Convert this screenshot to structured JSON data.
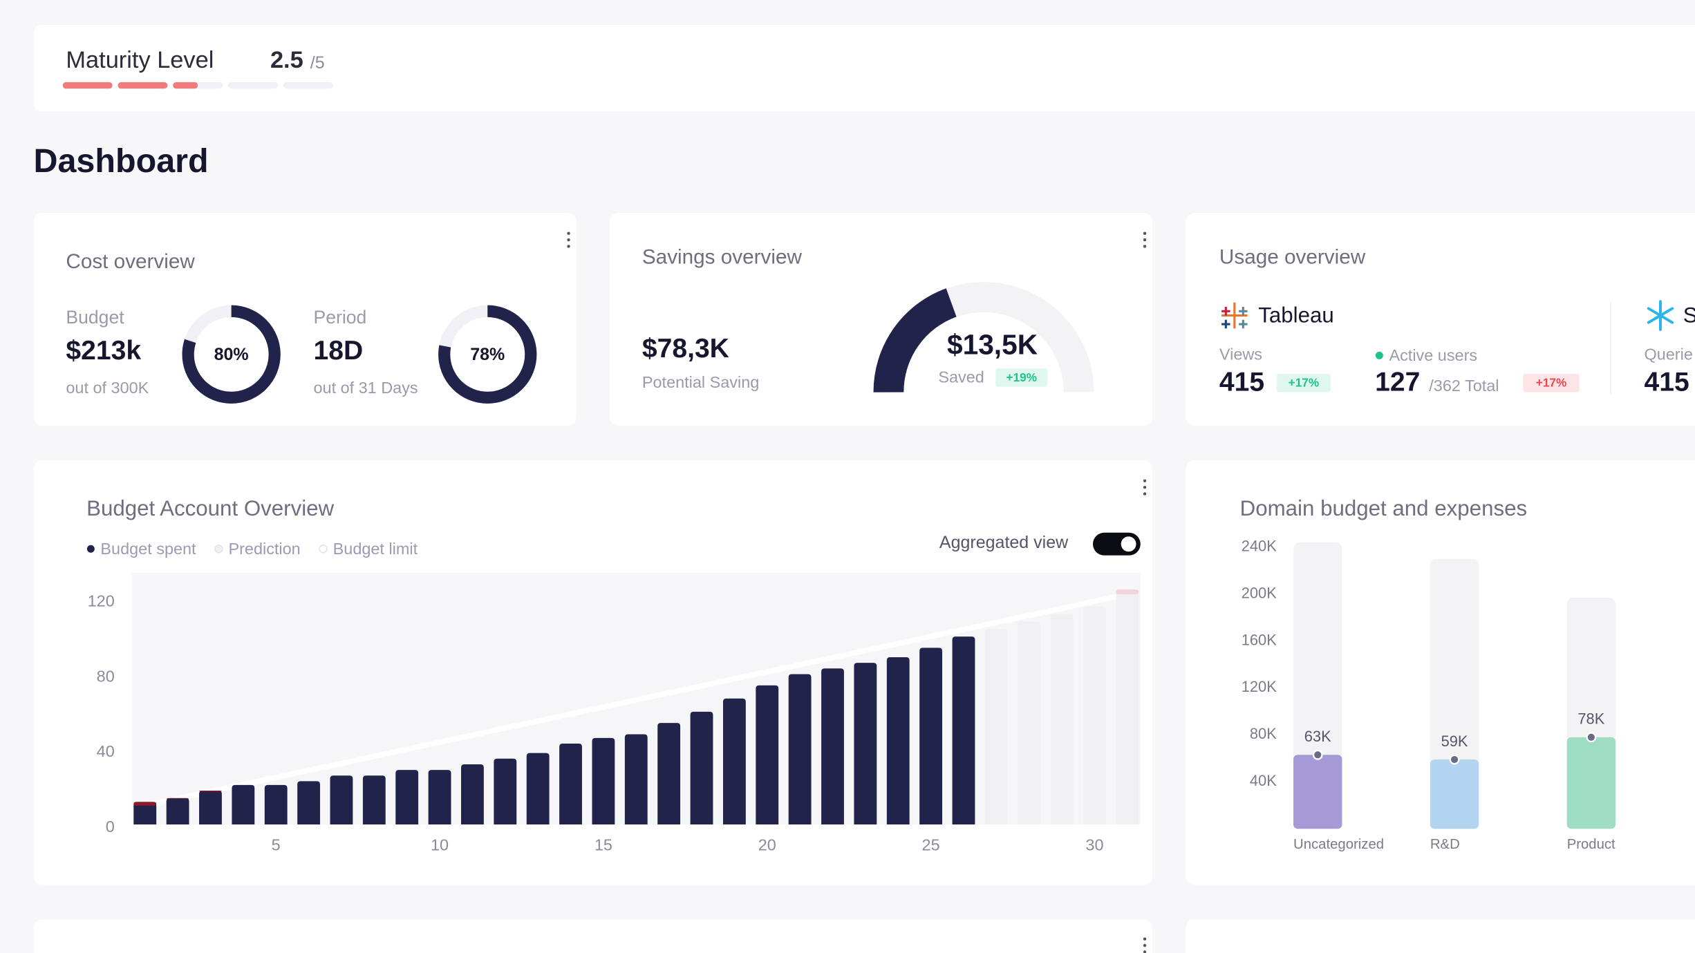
{
  "header": {
    "title": "Maturity Level",
    "score": 2.5,
    "max": {
      "value": 5,
      "label": "/5"
    }
  },
  "page_title": "Dashboard",
  "cost": {
    "title": "Cost overview",
    "items": [
      {
        "label": "Budget",
        "value": "$213k",
        "note": "out of 300K",
        "percent": {
          "value": 80,
          "label": "80%"
        }
      },
      {
        "label": "Period",
        "value": "18D",
        "note": "out of 31 Days",
        "percent": {
          "value": 78,
          "label": "78%"
        }
      }
    ]
  },
  "savings": {
    "title": "Savings overview",
    "potential": "$78,3K",
    "potential_label": "Potential Saving",
    "saved": "$13,5K",
    "saved_label": "Saved",
    "change": "+19%"
  },
  "usage": {
    "title": "Usage overview",
    "tools": [
      {
        "name": "Tableau",
        "views_label": "Views",
        "views": 415,
        "views_change": "+17%",
        "users_label": "Active users",
        "users": 127,
        "users_total": "/362 Total",
        "users_change": "+17%"
      },
      {
        "name": "S",
        "views_label": "Querie",
        "views": 415
      }
    ]
  },
  "chart_data": [
    {
      "type": "bar",
      "title": "Budget Account Overview",
      "toggle_label": "Aggregated view",
      "x": [
        1,
        2,
        3,
        4,
        5,
        6,
        7,
        8,
        9,
        10,
        11,
        12,
        13,
        14,
        15,
        16,
        17,
        18,
        19,
        20,
        21,
        22,
        23,
        24,
        25,
        26,
        27,
        28,
        29,
        30,
        31
      ],
      "xlim": [
        0.6,
        31.4
      ],
      "xticks": [
        5,
        10,
        15,
        20,
        25,
        30
      ],
      "ylim": [
        0,
        134
      ],
      "yticks": [
        0,
        40,
        80,
        120
      ],
      "series": [
        {
          "name": "Budget spent",
          "color": "#22234a",
          "over_color": "#8b1a2b",
          "values": [
            12,
            14,
            18,
            21,
            21,
            23,
            26,
            26,
            29,
            29,
            32,
            35,
            38,
            43,
            46,
            48,
            54,
            60,
            67,
            74,
            80,
            83,
            86,
            89,
            94,
            100,
            null,
            null,
            null,
            null,
            null
          ]
        },
        {
          "name": "Prediction",
          "color": "#f0f0f3",
          "over_color": "#f3d3d8",
          "values": [
            null,
            null,
            null,
            null,
            null,
            null,
            null,
            null,
            null,
            null,
            null,
            null,
            null,
            null,
            null,
            null,
            null,
            null,
            null,
            null,
            null,
            null,
            null,
            null,
            null,
            null,
            104,
            108,
            112,
            116,
            125
          ]
        },
        {
          "name": "Budget limit",
          "color": "#ffffff",
          "values": [
            10,
            13.75,
            17.5,
            21.25,
            25,
            28.75,
            32.5,
            36.25,
            40,
            43.75,
            47.5,
            51.25,
            55,
            58.75,
            62.5,
            66.25,
            70,
            73.75,
            77.5,
            81.25,
            85,
            88.75,
            92.5,
            96.25,
            100,
            103.75,
            107.5,
            111.25,
            115,
            118.75,
            122.5
          ]
        }
      ]
    },
    {
      "type": "bar",
      "title": "Domain budget and expenses",
      "categories": [
        "Uncategorized",
        "R&D",
        "Product"
      ],
      "ylim": [
        0,
        250000
      ],
      "yticks": [
        {
          "value": 40000,
          "label": "40K"
        },
        {
          "value": 80000,
          "label": "80K"
        },
        {
          "value": 120000,
          "label": "120K"
        },
        {
          "value": 160000,
          "label": "160K"
        },
        {
          "value": 200000,
          "label": "200K"
        },
        {
          "value": 240000,
          "label": "240K"
        }
      ],
      "budget": {
        "color": "#f3f3f6",
        "values": [
          244000,
          230000,
          197000
        ]
      },
      "expenses": {
        "values": [
          63000,
          59000,
          78000
        ],
        "value_labels": [
          "63K",
          "59K",
          "78K"
        ],
        "colors": [
          "#a59ad6",
          "#b3d4f1",
          "#9fdcc4"
        ]
      }
    }
  ]
}
